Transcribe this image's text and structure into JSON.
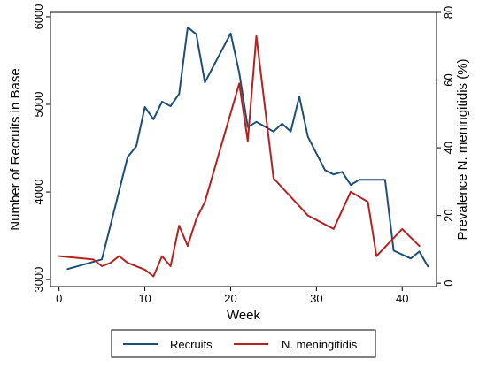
{
  "chart_data": {
    "type": "line",
    "xlabel": "Week",
    "ylabel_left": "Number of Recruits in Base",
    "ylabel_right": "Prevalence N. meningitidis (%)",
    "x_ticks": [
      "0",
      "10",
      "20",
      "30",
      "40"
    ],
    "y_left_ticks": [
      "3000",
      "4000",
      "5000",
      "6000"
    ],
    "y_right_ticks": [
      "0",
      "20",
      "40",
      "60",
      "80"
    ],
    "xlim": [
      -1,
      44
    ],
    "ylim_left": [
      2920,
      6050
    ],
    "ylim_right": [
      -1,
      80
    ],
    "grid": false,
    "legend_position": "bottom",
    "series": [
      {
        "name": "Recruits",
        "axis": "left",
        "color": "#1f4e79",
        "x": [
          1,
          5,
          8,
          9,
          10,
          11,
          12,
          13,
          14,
          15,
          16,
          17,
          20,
          21,
          22,
          23,
          25,
          26,
          27,
          28,
          29,
          31,
          32,
          33,
          34,
          35,
          38,
          39,
          41,
          42,
          43
        ],
        "y": [
          3120,
          3230,
          4400,
          4520,
          4970,
          4830,
          5030,
          4980,
          5120,
          5880,
          5800,
          5250,
          5810,
          5360,
          4740,
          4800,
          4690,
          4780,
          4690,
          5090,
          4630,
          4250,
          4200,
          4230,
          4080,
          4140,
          4140,
          3330,
          3240,
          3320,
          3150
        ]
      },
      {
        "name": "N. meningitidis",
        "axis": "right",
        "color": "#b22222",
        "x": [
          0,
          4,
          5,
          6,
          7,
          8,
          10,
          11,
          12,
          13,
          14,
          15,
          16,
          17,
          21,
          22,
          23,
          25,
          29,
          32,
          34,
          36,
          37,
          40,
          42
        ],
        "y": [
          8,
          7,
          5,
          6,
          8,
          6,
          4,
          2,
          8,
          5,
          17,
          11,
          19,
          24,
          59,
          42,
          73,
          31,
          20,
          16,
          27,
          24,
          8,
          16,
          11
        ]
      }
    ]
  }
}
